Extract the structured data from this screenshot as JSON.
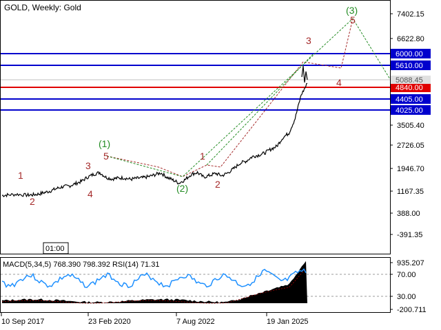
{
  "chart_data": {
    "type": "line",
    "title": "GOLD, Weekly:  Gold",
    "time_marker": "01:00",
    "x_ticks": [
      "10 Sep 2017",
      "23 Feb 2020",
      "7 Aug 2022",
      "19 Jan 2025"
    ],
    "y_ticks": [
      "7402.15",
      "6622.80",
      "6000.00",
      "5610.00",
      "5088.45",
      "4840.00",
      "4405.00",
      "4025.00",
      "3505.40",
      "2726.05",
      "1946.70",
      "1167.35",
      "388.00",
      "-391.35"
    ],
    "current_price": "5088.45",
    "levels": [
      {
        "value": 6000.0,
        "label": "6000.00",
        "color": "#0000cd"
      },
      {
        "value": 5610.0,
        "label": "5610.00",
        "color": "#0000cd"
      },
      {
        "value": 4840.0,
        "label": "4840.00",
        "color": "#e00000"
      },
      {
        "value": 4405.0,
        "label": "4405.00",
        "color": "#0000cd"
      },
      {
        "value": 4025.0,
        "label": "4025.00",
        "color": "#0000cd"
      }
    ],
    "ylim": [
      -700,
      7900
    ],
    "series": [
      {
        "name": "GOLD",
        "x": [
          0,
          0.02,
          0.05,
          0.08,
          0.1,
          0.12,
          0.14,
          0.16,
          0.18,
          0.2,
          0.22,
          0.24,
          0.26,
          0.28,
          0.3,
          0.32,
          0.34,
          0.36,
          0.38,
          0.4,
          0.42,
          0.44,
          0.46,
          0.48,
          0.5,
          0.52,
          0.54,
          0.56,
          0.58,
          0.6,
          0.62,
          0.64,
          0.66,
          0.68,
          0.7,
          0.72,
          0.74,
          0.76,
          0.78,
          0.8,
          0.82,
          0.84,
          0.86,
          0.88,
          0.9,
          0.92,
          0.94,
          0.96,
          0.98,
          1.0
        ],
        "values": [
          1280,
          1300,
          1320,
          1290,
          1300,
          1330,
          1380,
          1440,
          1520,
          1580,
          1600,
          1680,
          1760,
          1900,
          2000,
          2060,
          1900,
          1840,
          1870,
          1880,
          1830,
          1860,
          1880,
          1920,
          1980,
          2050,
          1900,
          1800,
          1700,
          1820,
          2000,
          2060,
          1900,
          1960,
          2030,
          1950,
          2050,
          2200,
          2380,
          2450,
          2600,
          2650,
          2720,
          2850,
          2950,
          3250,
          3400,
          3900,
          4700,
          5088
        ]
      }
    ],
    "wave_labels": [
      {
        "text": "1",
        "x": "10 Sep 2017",
        "y": 1580,
        "color": "red"
      },
      {
        "text": "2",
        "x": "10 Sep 2017",
        "y": 960,
        "color": "red"
      },
      {
        "text": "3",
        "x": "23 Feb 2020",
        "y": 2000,
        "color": "red"
      },
      {
        "text": "4",
        "x": "23 Feb 2020",
        "y": 1140,
        "color": "red"
      },
      {
        "text": "5",
        "x": "23 Feb 2020",
        "y": 2450,
        "color": "red"
      },
      {
        "text": "(1)",
        "x": "23 Feb 2020",
        "y": 2800,
        "color": "green"
      },
      {
        "text": "(2)",
        "x": "7 Aug 2022",
        "y": 1280,
        "color": "green"
      },
      {
        "text": "1",
        "x": "7 Aug 2022",
        "y": 2380,
        "color": "red"
      },
      {
        "text": "2",
        "x": "7 Aug 2022",
        "y": 1400,
        "color": "red"
      },
      {
        "text": "3",
        "x": "19 Jan 2025",
        "y": 6300,
        "color": "red"
      },
      {
        "text": "4",
        "x": "19 Jan 2025",
        "y": 5050,
        "color": "red"
      },
      {
        "text": "5",
        "x": "19 Jan 2025",
        "y": 7300,
        "color": "red"
      },
      {
        "text": "(3)",
        "x": "19 Jan 2025",
        "y": 7600,
        "color": "green"
      }
    ]
  },
  "indicator_panel": {
    "label": "MACD(5,34,5) 768.390 798.392 RSI(14) 71.31",
    "y_ticks": [
      "935.207",
      "70.00",
      "30.00",
      "-200.711"
    ],
    "rsi_series": {
      "name": "RSI(14)",
      "current": 71.31
    },
    "macd_series": {
      "name": "MACD(5,34,5)",
      "main": 768.39,
      "signal": 798.392
    }
  },
  "colors": {
    "price_line": "#000000",
    "level_blue": "#0000cd",
    "level_red": "#e00000",
    "wave_red": "#a52a2a",
    "wave_green": "#228b22",
    "rsi_line": "#1e90ff",
    "macd_fill": "#000000",
    "macd_signal": "#8b0000"
  }
}
